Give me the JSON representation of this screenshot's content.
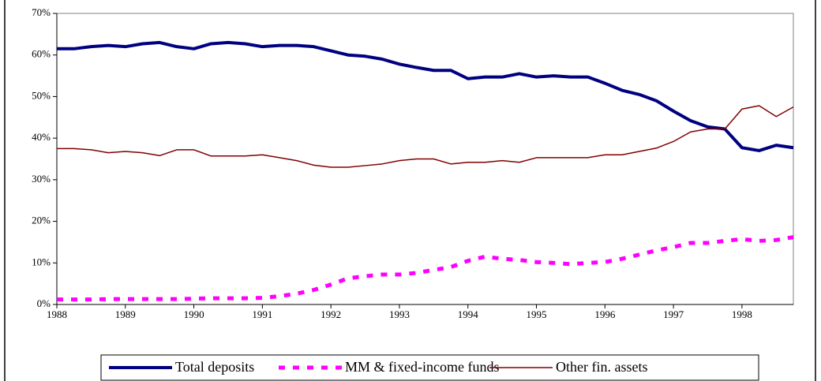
{
  "chart_data": {
    "type": "line",
    "x": [
      1988,
      1988.25,
      1988.5,
      1988.75,
      1989,
      1989.25,
      1989.5,
      1989.75,
      1990,
      1990.25,
      1990.5,
      1990.75,
      1991,
      1991.25,
      1991.5,
      1991.75,
      1992,
      1992.25,
      1992.5,
      1992.75,
      1993,
      1993.25,
      1993.5,
      1993.75,
      1994,
      1994.25,
      1994.5,
      1994.75,
      1995,
      1995.25,
      1995.5,
      1995.75,
      1996,
      1996.25,
      1996.5,
      1996.75,
      1997,
      1997.25,
      1997.5,
      1997.75,
      1998,
      1998.25,
      1998.5,
      1998.75
    ],
    "series": [
      {
        "name": "Total deposits",
        "color": "#000080",
        "values": [
          61.5,
          61.5,
          62,
          62.3,
          62,
          62.7,
          63,
          62,
          61.5,
          62.7,
          63,
          62.7,
          62,
          62.3,
          62.3,
          62,
          61,
          60,
          59.7,
          59,
          57.8,
          57,
          56.3,
          56.3,
          54.3,
          54.7,
          54.7,
          55.5,
          54.7,
          55,
          54.7,
          54.7,
          53.2,
          51.5,
          50.5,
          49,
          46.5,
          44.2,
          42.7,
          42.2,
          37.7,
          37,
          38.3,
          37.7
        ]
      },
      {
        "name": "MM & fixed-income funds",
        "color": "#ff00ff",
        "values": [
          1.2,
          1.2,
          1.2,
          1.3,
          1.3,
          1.3,
          1.3,
          1.3,
          1.4,
          1.5,
          1.5,
          1.5,
          1.6,
          2,
          2.6,
          3.5,
          4.8,
          6.3,
          6.8,
          7.2,
          7.2,
          7.6,
          8.3,
          9,
          10.5,
          11.5,
          11,
          10.7,
          10.2,
          10,
          9.7,
          10,
          10.2,
          11,
          12,
          13,
          13.8,
          14.8,
          14.8,
          15.3,
          15.7,
          15.3,
          15.5,
          16.2
        ]
      },
      {
        "name": "Other fin. assets",
        "color": "#800000",
        "values": [
          37.5,
          37.5,
          37.2,
          36.5,
          36.8,
          36.5,
          35.8,
          37.2,
          37.2,
          35.7,
          35.7,
          35.7,
          36,
          35.3,
          34.6,
          33.5,
          33,
          33,
          33.4,
          33.8,
          34.6,
          35,
          35,
          33.8,
          34.2,
          34.2,
          34.6,
          34.2,
          35.3,
          35.3,
          35.3,
          35.3,
          36,
          36,
          36.8,
          37.6,
          39.2,
          41.5,
          42.2,
          42.2,
          47,
          47.8,
          45.2,
          47.5
        ]
      }
    ],
    "xlim": [
      1988,
      1998.75
    ],
    "xticks": [
      1988,
      1989,
      1990,
      1991,
      1992,
      1993,
      1994,
      1995,
      1996,
      1997,
      1998
    ],
    "ylim": [
      0,
      70
    ],
    "yticks": [
      {
        "value": 0,
        "label": "0%"
      },
      {
        "value": 10,
        "label": "10%"
      },
      {
        "value": 20,
        "label": "20%"
      },
      {
        "value": 30,
        "label": "30%"
      },
      {
        "value": 40,
        "label": "40%"
      },
      {
        "value": 50,
        "label": "50%"
      },
      {
        "value": 60,
        "label": "60%"
      },
      {
        "value": 70,
        "label": "70%"
      }
    ],
    "grid": false
  }
}
